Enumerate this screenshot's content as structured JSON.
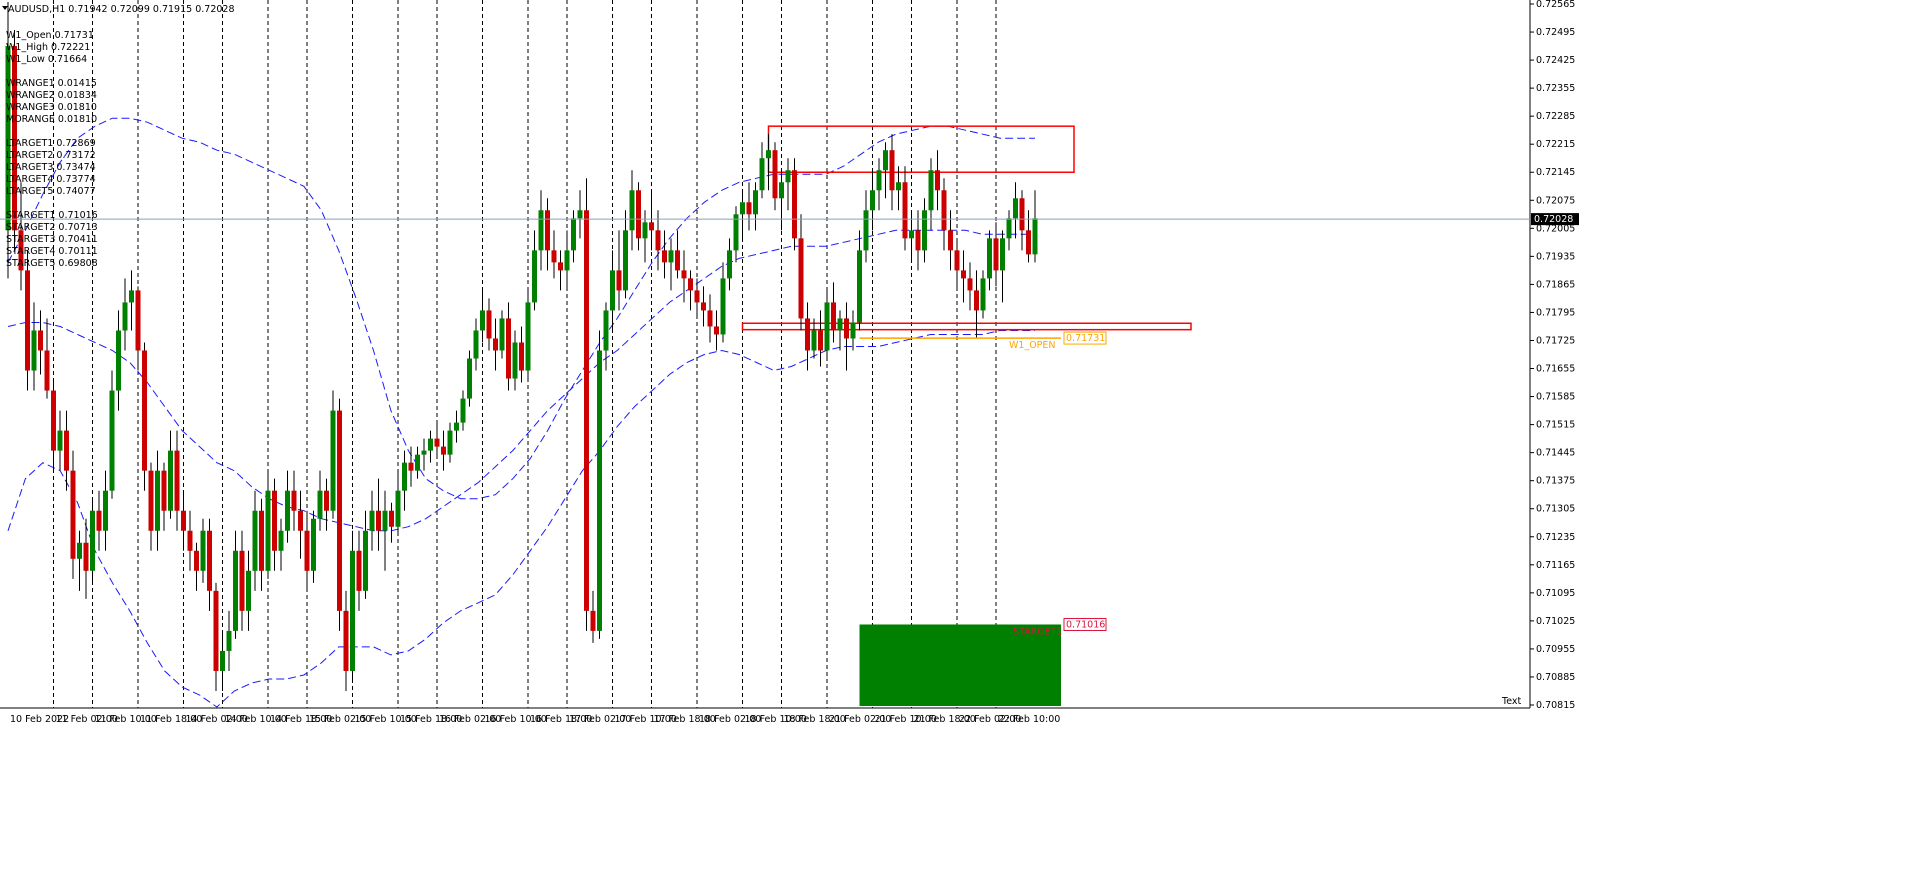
{
  "header": {
    "symbol_line": "AUDUSD,H1  0.71942 0.72099 0.71915 0.72028"
  },
  "info_panel": [
    "W1_Open 0.71731",
    "W1_High 0.72221",
    "W1_Low 0.71664",
    "",
    "WRANGE1 0.01415",
    "WRANGE2 0.01834",
    "WRANGE3 0.01810",
    "MORANGE 0.01810",
    "",
    "LTARGET1 0.72869",
    "LTARGET2 0.73172",
    "LTARGET3 0.73474",
    "LTARGET4 0.73774",
    "LTARGET5 0.74077",
    "",
    "STARGET1 0.71016",
    "STARGET2 0.70713",
    "STARGET3 0.70411",
    "STARGET4 0.70111",
    "STARGET5 0.69808"
  ],
  "colors": {
    "background": "#ffffff",
    "bull_candle": "#008000",
    "bear_candle": "#cc0000",
    "bollinger": "#1a1aff",
    "zone_outline": "#ff0000",
    "open_line": "#ffa500",
    "current_price_line": "#8aa0b8",
    "starget_box": "#008000",
    "starget_label": "#dc143c"
  },
  "chart_data": {
    "type": "candlestick",
    "symbol": "AUDUSD",
    "timeframe": "H1",
    "current_price": "0.72028",
    "ylim": [
      0.70815,
      0.72565
    ],
    "y_ticks": [
      "0.72565",
      "0.72495",
      "0.72425",
      "0.72355",
      "0.72285",
      "0.72215",
      "0.72145",
      "0.72075",
      "0.72005",
      "0.71935",
      "0.71865",
      "0.71795",
      "0.71725",
      "0.71655",
      "0.71585",
      "0.71515",
      "0.71445",
      "0.71375",
      "0.71305",
      "0.71235",
      "0.71165",
      "0.71095",
      "0.71025",
      "0.70955",
      "0.70885",
      "0.70815"
    ],
    "x_ticks": [
      "10 Feb 2022",
      "11 Feb 02:00",
      "11 Feb 10:00",
      "11 Feb 18:00",
      "14 Feb 02:00",
      "14 Feb 10:00",
      "14 Feb 18:00",
      "15 Feb 02:00",
      "15 Feb 10:00",
      "15 Feb 18:00",
      "16 Feb 02:00",
      "16 Feb 10:00",
      "16 Feb 18:00",
      "17 Feb 02:00",
      "17 Feb 10:00",
      "17 Feb 18:00",
      "18 Feb 02:00",
      "18 Feb 10:00",
      "18 Feb 18:00",
      "21 Feb 02:00",
      "21 Feb 10:00",
      "21 Feb 18:00",
      "22 Feb 02:00",
      "22 Feb 10:00"
    ],
    "separator_tick_indices": [
      0,
      3,
      6,
      9,
      12,
      15,
      18,
      21
    ],
    "candles": [
      [
        0.72,
        0.7257,
        0.7188,
        0.7246
      ],
      [
        0.7246,
        0.725,
        0.7195,
        0.72
      ],
      [
        0.72,
        0.7212,
        0.7185,
        0.719
      ],
      [
        0.719,
        0.7195,
        0.716,
        0.7165
      ],
      [
        0.7165,
        0.7182,
        0.716,
        0.7175
      ],
      [
        0.7175,
        0.718,
        0.7164,
        0.717
      ],
      [
        0.717,
        0.7178,
        0.7158,
        0.716
      ],
      [
        0.716,
        0.7163,
        0.714,
        0.7145
      ],
      [
        0.7145,
        0.7155,
        0.714,
        0.715
      ],
      [
        0.715,
        0.7155,
        0.7135,
        0.714
      ],
      [
        0.714,
        0.7145,
        0.7113,
        0.7118
      ],
      [
        0.7118,
        0.7125,
        0.711,
        0.7122
      ],
      [
        0.7122,
        0.7128,
        0.7108,
        0.7115
      ],
      [
        0.7115,
        0.7133,
        0.7112,
        0.713
      ],
      [
        0.713,
        0.7135,
        0.712,
        0.7125
      ],
      [
        0.7125,
        0.714,
        0.712,
        0.7135
      ],
      [
        0.7135,
        0.7165,
        0.7133,
        0.716
      ],
      [
        0.716,
        0.718,
        0.7155,
        0.7175
      ],
      [
        0.7175,
        0.7188,
        0.717,
        0.7182
      ],
      [
        0.7182,
        0.719,
        0.7175,
        0.7185
      ],
      [
        0.7185,
        0.7186,
        0.7165,
        0.717
      ],
      [
        0.717,
        0.7172,
        0.7135,
        0.714
      ],
      [
        0.714,
        0.7142,
        0.712,
        0.7125
      ],
      [
        0.7125,
        0.7145,
        0.712,
        0.714
      ],
      [
        0.714,
        0.7142,
        0.7125,
        0.713
      ],
      [
        0.713,
        0.715,
        0.7128,
        0.7145
      ],
      [
        0.7145,
        0.715,
        0.7125,
        0.713
      ],
      [
        0.713,
        0.7135,
        0.712,
        0.7125
      ],
      [
        0.7125,
        0.713,
        0.7115,
        0.712
      ],
      [
        0.712,
        0.7122,
        0.711,
        0.7115
      ],
      [
        0.7115,
        0.7128,
        0.7112,
        0.7125
      ],
      [
        0.7125,
        0.7128,
        0.7105,
        0.711
      ],
      [
        0.711,
        0.7112,
        0.7085,
        0.709
      ],
      [
        0.709,
        0.71,
        0.7085,
        0.7095
      ],
      [
        0.7095,
        0.7105,
        0.709,
        0.71
      ],
      [
        0.71,
        0.7125,
        0.7098,
        0.712
      ],
      [
        0.712,
        0.7125,
        0.71,
        0.7105
      ],
      [
        0.7105,
        0.712,
        0.71,
        0.7115
      ],
      [
        0.7115,
        0.7135,
        0.711,
        0.713
      ],
      [
        0.713,
        0.7133,
        0.711,
        0.7115
      ],
      [
        0.7115,
        0.714,
        0.7113,
        0.7135
      ],
      [
        0.7135,
        0.7138,
        0.7115,
        0.712
      ],
      [
        0.712,
        0.7128,
        0.7115,
        0.7125
      ],
      [
        0.7125,
        0.714,
        0.7122,
        0.7135
      ],
      [
        0.7135,
        0.714,
        0.7125,
        0.713
      ],
      [
        0.713,
        0.7135,
        0.7118,
        0.7125
      ],
      [
        0.7125,
        0.713,
        0.711,
        0.7115
      ],
      [
        0.7115,
        0.713,
        0.7112,
        0.7128
      ],
      [
        0.7128,
        0.714,
        0.7125,
        0.7135
      ],
      [
        0.7135,
        0.7138,
        0.7125,
        0.713
      ],
      [
        0.713,
        0.716,
        0.7128,
        0.7155
      ],
      [
        0.7155,
        0.7158,
        0.71,
        0.7105
      ],
      [
        0.7105,
        0.711,
        0.7085,
        0.709
      ],
      [
        0.709,
        0.7125,
        0.7088,
        0.712
      ],
      [
        0.712,
        0.7125,
        0.7105,
        0.711
      ],
      [
        0.711,
        0.713,
        0.7108,
        0.7125
      ],
      [
        0.7125,
        0.7135,
        0.712,
        0.713
      ],
      [
        0.713,
        0.7138,
        0.712,
        0.7125
      ],
      [
        0.7125,
        0.7135,
        0.7115,
        0.713
      ],
      [
        0.713,
        0.7132,
        0.7122,
        0.7126
      ],
      [
        0.7126,
        0.714,
        0.7124,
        0.7135
      ],
      [
        0.7135,
        0.7145,
        0.713,
        0.7142
      ],
      [
        0.7142,
        0.7146,
        0.7136,
        0.714
      ],
      [
        0.714,
        0.7146,
        0.7138,
        0.7144
      ],
      [
        0.7144,
        0.7148,
        0.714,
        0.7145
      ],
      [
        0.7145,
        0.715,
        0.7142,
        0.7148
      ],
      [
        0.7148,
        0.7152,
        0.7143,
        0.7146
      ],
      [
        0.7146,
        0.715,
        0.714,
        0.7144
      ],
      [
        0.7144,
        0.7152,
        0.7142,
        0.715
      ],
      [
        0.715,
        0.7155,
        0.7147,
        0.7152
      ],
      [
        0.7152,
        0.716,
        0.715,
        0.7158
      ],
      [
        0.7158,
        0.717,
        0.7156,
        0.7168
      ],
      [
        0.7168,
        0.7178,
        0.7165,
        0.7175
      ],
      [
        0.7175,
        0.7185,
        0.7172,
        0.718
      ],
      [
        0.718,
        0.7183,
        0.717,
        0.7173
      ],
      [
        0.7173,
        0.7178,
        0.7165,
        0.717
      ],
      [
        0.717,
        0.718,
        0.7168,
        0.7178
      ],
      [
        0.7178,
        0.7182,
        0.716,
        0.7163
      ],
      [
        0.7163,
        0.7175,
        0.716,
        0.7172
      ],
      [
        0.7172,
        0.7176,
        0.7162,
        0.7165
      ],
      [
        0.7165,
        0.7185,
        0.7163,
        0.7182
      ],
      [
        0.7182,
        0.72,
        0.718,
        0.7195
      ],
      [
        0.7195,
        0.721,
        0.719,
        0.7205
      ],
      [
        0.7205,
        0.7208,
        0.719,
        0.7195
      ],
      [
        0.7195,
        0.72,
        0.7188,
        0.7192
      ],
      [
        0.7192,
        0.7195,
        0.7185,
        0.719
      ],
      [
        0.719,
        0.72,
        0.7185,
        0.7195
      ],
      [
        0.7195,
        0.7205,
        0.7192,
        0.7203
      ],
      [
        0.7203,
        0.721,
        0.7198,
        0.7205
      ],
      [
        0.7205,
        0.7213,
        0.71,
        0.7105
      ],
      [
        0.7105,
        0.711,
        0.7097,
        0.71
      ],
      [
        0.71,
        0.7175,
        0.7098,
        0.717
      ],
      [
        0.717,
        0.7182,
        0.7165,
        0.718
      ],
      [
        0.718,
        0.7195,
        0.7175,
        0.719
      ],
      [
        0.719,
        0.72,
        0.718,
        0.7185
      ],
      [
        0.7185,
        0.7205,
        0.7183,
        0.72
      ],
      [
        0.72,
        0.7215,
        0.7195,
        0.721
      ],
      [
        0.721,
        0.7212,
        0.7195,
        0.7198
      ],
      [
        0.7198,
        0.7205,
        0.7192,
        0.7202
      ],
      [
        0.7202,
        0.721,
        0.7195,
        0.72
      ],
      [
        0.72,
        0.7205,
        0.719,
        0.7195
      ],
      [
        0.7195,
        0.72,
        0.7188,
        0.7192
      ],
      [
        0.7192,
        0.7198,
        0.7185,
        0.7195
      ],
      [
        0.7195,
        0.72,
        0.7188,
        0.719
      ],
      [
        0.719,
        0.7195,
        0.7182,
        0.7188
      ],
      [
        0.7188,
        0.719,
        0.718,
        0.7185
      ],
      [
        0.7185,
        0.7188,
        0.7178,
        0.7182
      ],
      [
        0.7182,
        0.7186,
        0.7176,
        0.718
      ],
      [
        0.718,
        0.7184,
        0.7172,
        0.7176
      ],
      [
        0.7176,
        0.718,
        0.717,
        0.7174
      ],
      [
        0.7174,
        0.7192,
        0.7172,
        0.7188
      ],
      [
        0.7188,
        0.7198,
        0.7185,
        0.7195
      ],
      [
        0.7195,
        0.7206,
        0.7192,
        0.7204
      ],
      [
        0.7204,
        0.721,
        0.7198,
        0.7207
      ],
      [
        0.7207,
        0.7212,
        0.72,
        0.7204
      ],
      [
        0.7204,
        0.7212,
        0.72,
        0.721
      ],
      [
        0.721,
        0.7222,
        0.7208,
        0.7218
      ],
      [
        0.7218,
        0.7224,
        0.721,
        0.722
      ],
      [
        0.722,
        0.7222,
        0.7205,
        0.7208
      ],
      [
        0.7208,
        0.7215,
        0.72,
        0.7212
      ],
      [
        0.7212,
        0.7218,
        0.7205,
        0.7215
      ],
      [
        0.7215,
        0.7218,
        0.7195,
        0.7198
      ],
      [
        0.7198,
        0.7204,
        0.7175,
        0.7178
      ],
      [
        0.7178,
        0.7182,
        0.7165,
        0.717
      ],
      [
        0.717,
        0.7178,
        0.7168,
        0.7175
      ],
      [
        0.7175,
        0.718,
        0.7166,
        0.717
      ],
      [
        0.717,
        0.7185,
        0.7168,
        0.7182
      ],
      [
        0.7182,
        0.7187,
        0.7172,
        0.7175
      ],
      [
        0.7175,
        0.718,
        0.717,
        0.7178
      ],
      [
        0.7178,
        0.7182,
        0.7165,
        0.7173
      ],
      [
        0.7173,
        0.718,
        0.717,
        0.7177
      ],
      [
        0.7177,
        0.72,
        0.7175,
        0.7195
      ],
      [
        0.7195,
        0.721,
        0.7192,
        0.7205
      ],
      [
        0.7205,
        0.7215,
        0.72,
        0.721
      ],
      [
        0.721,
        0.7218,
        0.7205,
        0.7215
      ],
      [
        0.7215,
        0.7222,
        0.7208,
        0.722
      ],
      [
        0.722,
        0.7224,
        0.7205,
        0.721
      ],
      [
        0.721,
        0.7216,
        0.7205,
        0.7212
      ],
      [
        0.7212,
        0.7216,
        0.7195,
        0.7198
      ],
      [
        0.7198,
        0.7205,
        0.7192,
        0.72
      ],
      [
        0.72,
        0.7205,
        0.719,
        0.7195
      ],
      [
        0.7195,
        0.7208,
        0.7192,
        0.7205
      ],
      [
        0.7205,
        0.7218,
        0.72,
        0.7215
      ],
      [
        0.7215,
        0.722,
        0.7205,
        0.721
      ],
      [
        0.721,
        0.7213,
        0.7195,
        0.72
      ],
      [
        0.72,
        0.7205,
        0.719,
        0.7195
      ],
      [
        0.7195,
        0.7198,
        0.7185,
        0.719
      ],
      [
        0.719,
        0.7195,
        0.7182,
        0.7188
      ],
      [
        0.7188,
        0.7192,
        0.718,
        0.7185
      ],
      [
        0.7185,
        0.719,
        0.7173,
        0.718
      ],
      [
        0.718,
        0.719,
        0.7178,
        0.7188
      ],
      [
        0.7188,
        0.72,
        0.7185,
        0.7198
      ],
      [
        0.7198,
        0.7202,
        0.7186,
        0.719
      ],
      [
        0.719,
        0.72,
        0.7182,
        0.7198
      ],
      [
        0.7198,
        0.7205,
        0.7195,
        0.7203
      ],
      [
        0.7203,
        0.7212,
        0.7198,
        0.7208
      ],
      [
        0.7208,
        0.721,
        0.7195,
        0.72
      ],
      [
        0.72,
        0.7205,
        0.7192,
        0.7194
      ],
      [
        0.7194,
        0.721,
        0.7192,
        0.7203
      ]
    ],
    "bollinger": {
      "upper": [
        0.7192,
        0.72,
        0.7209,
        0.7217,
        0.7223,
        0.7226,
        0.7228,
        0.7228,
        0.7227,
        0.7225,
        0.7223,
        0.7222,
        0.722,
        0.7219,
        0.7217,
        0.7215,
        0.7213,
        0.7211,
        0.7205,
        0.7195,
        0.7183,
        0.717,
        0.7155,
        0.7145,
        0.7138,
        0.7135,
        0.7133,
        0.7133,
        0.7134,
        0.7138,
        0.7143,
        0.715,
        0.7158,
        0.7165,
        0.7172,
        0.7178,
        0.7185,
        0.7192,
        0.7198,
        0.7203,
        0.7207,
        0.721,
        0.7212,
        0.7213,
        0.7214,
        0.7214,
        0.7214,
        0.7214,
        0.7216,
        0.7219,
        0.7222,
        0.7224,
        0.7225,
        0.7226,
        0.7226,
        0.7225,
        0.7224,
        0.7223,
        0.7223,
        0.7223
      ],
      "middle": [
        0.7176,
        0.7177,
        0.7177,
        0.7176,
        0.7174,
        0.7172,
        0.717,
        0.7167,
        0.7162,
        0.7156,
        0.715,
        0.7146,
        0.7142,
        0.714,
        0.7136,
        0.7133,
        0.7131,
        0.713,
        0.7128,
        0.7127,
        0.7126,
        0.7125,
        0.7125,
        0.7126,
        0.7128,
        0.7131,
        0.7134,
        0.7137,
        0.7141,
        0.7145,
        0.715,
        0.7155,
        0.7159,
        0.7163,
        0.7167,
        0.717,
        0.7174,
        0.7178,
        0.7182,
        0.7185,
        0.7188,
        0.7191,
        0.7193,
        0.7194,
        0.7195,
        0.7196,
        0.7196,
        0.7196,
        0.7197,
        0.7198,
        0.7199,
        0.72,
        0.72,
        0.72,
        0.72,
        0.72,
        0.7199,
        0.7199,
        0.7199,
        0.7199
      ],
      "lower": [
        0.7125,
        0.7138,
        0.7142,
        0.714,
        0.7132,
        0.712,
        0.7112,
        0.7105,
        0.7097,
        0.709,
        0.7086,
        0.7084,
        0.7081,
        0.7085,
        0.7087,
        0.7088,
        0.7088,
        0.7089,
        0.7092,
        0.7096,
        0.7096,
        0.7096,
        0.7094,
        0.7095,
        0.7098,
        0.7102,
        0.7105,
        0.7107,
        0.7109,
        0.7114,
        0.712,
        0.7126,
        0.7133,
        0.714,
        0.7145,
        0.7151,
        0.7156,
        0.716,
        0.7164,
        0.7167,
        0.7169,
        0.717,
        0.7169,
        0.7167,
        0.7165,
        0.7166,
        0.7168,
        0.717,
        0.7171,
        0.7171,
        0.7171,
        0.7172,
        0.7173,
        0.7174,
        0.7174,
        0.7174,
        0.7174,
        0.7175,
        0.7175,
        0.7175
      ]
    },
    "zones": [
      {
        "name": "upper-supply-zone",
        "start_index": 117,
        "end_index": 164,
        "top": 0.7226,
        "bottom": 0.72145
      },
      {
        "name": "lower-demand-zone",
        "start_index": 113,
        "end_index": 182,
        "top": 0.71768,
        "bottom": 0.71752
      }
    ],
    "w1_open": {
      "label": "W1_OPEN",
      "price_label": "0.71731",
      "price": 0.71731,
      "start_index": 131,
      "end_index": 162
    },
    "starget_box": {
      "label": "STARGET1",
      "price_label": "0.71016",
      "price": 0.71016,
      "start_index": 131,
      "end_index": 162
    },
    "corner_text": "Text"
  }
}
